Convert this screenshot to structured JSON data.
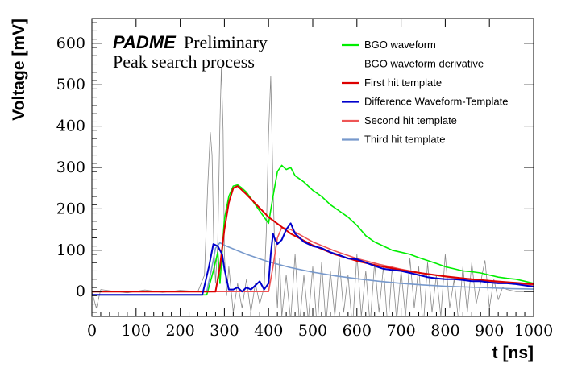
{
  "chart_data": {
    "type": "line",
    "title": "",
    "annotations": {
      "experiment": "PADME",
      "status": "Preliminary",
      "subtitle": "Peak search process"
    },
    "xlabel": "t [ns]",
    "ylabel": "Voltage [mV]",
    "xlim": [
      0,
      1000
    ],
    "ylim": [
      -60,
      660
    ],
    "xticks": [
      0,
      100,
      200,
      300,
      400,
      500,
      600,
      700,
      800,
      900,
      1000
    ],
    "yticks": [
      0,
      100,
      200,
      300,
      400,
      500,
      600
    ],
    "grid": false,
    "legend_position": "top-right",
    "series": [
      {
        "name": "BGO waveform",
        "color": "#00ee00",
        "x": [
          0,
          100,
          200,
          260,
          275,
          285,
          290,
          300,
          310,
          320,
          330,
          340,
          350,
          360,
          380,
          400,
          410,
          420,
          430,
          440,
          450,
          460,
          480,
          500,
          520,
          540,
          560,
          580,
          600,
          620,
          640,
          660,
          680,
          700,
          720,
          740,
          760,
          780,
          800,
          820,
          840,
          860,
          880,
          900,
          920,
          940,
          960,
          980,
          1000
        ],
        "y": [
          -8,
          -8,
          -8,
          -8,
          50,
          95,
          20,
          175,
          230,
          255,
          258,
          250,
          240,
          225,
          195,
          165,
          230,
          290,
          305,
          295,
          300,
          280,
          265,
          245,
          230,
          210,
          195,
          180,
          160,
          135,
          120,
          110,
          100,
          95,
          90,
          82,
          75,
          68,
          60,
          55,
          50,
          48,
          45,
          40,
          35,
          32,
          30,
          25,
          20
        ]
      },
      {
        "name": "BGO waveform derivative",
        "color": "#888888",
        "x": [
          0,
          10,
          20,
          40,
          80,
          120,
          160,
          200,
          240,
          255,
          262,
          268,
          272,
          276,
          280,
          285,
          290,
          293,
          297,
          300,
          305,
          310,
          320,
          330,
          340,
          350,
          360,
          370,
          380,
          390,
          395,
          400,
          405,
          410,
          415,
          420,
          425,
          430,
          440,
          450,
          460,
          470,
          480,
          490,
          500,
          510,
          520,
          530,
          540,
          550,
          560,
          570,
          580,
          590,
          600,
          610,
          620,
          630,
          640,
          650,
          660,
          670,
          680,
          690,
          700,
          710,
          720,
          730,
          740,
          750,
          760,
          770,
          780,
          790,
          800,
          810,
          820,
          830,
          840,
          850,
          860,
          870,
          880,
          885,
          890,
          895,
          900,
          910,
          920,
          930,
          940,
          960,
          980,
          1000
        ],
        "y": [
          0,
          -40,
          5,
          2,
          -3,
          4,
          -2,
          3,
          0,
          40,
          250,
          385,
          330,
          120,
          20,
          120,
          410,
          540,
          390,
          90,
          -10,
          60,
          -50,
          20,
          -40,
          30,
          -50,
          20,
          -30,
          10,
          150,
          380,
          520,
          260,
          60,
          -40,
          80,
          -60,
          40,
          -70,
          90,
          -80,
          40,
          -70,
          60,
          -90,
          70,
          -80,
          50,
          -60,
          80,
          -50,
          40,
          -90,
          90,
          -60,
          50,
          -80,
          70,
          -50,
          60,
          -90,
          60,
          -70,
          50,
          -60,
          80,
          -40,
          60,
          -90,
          70,
          -50,
          40,
          -60,
          90,
          -40,
          30,
          -70,
          60,
          -50,
          70,
          -30,
          20,
          50,
          75,
          20,
          -40,
          30,
          -20,
          10,
          5,
          0,
          0,
          0
        ]
      },
      {
        "name": "First hit template",
        "color": "#dd0000",
        "x": [
          0,
          280,
          290,
          300,
          310,
          320,
          330,
          350,
          400,
          450,
          500,
          550,
          600,
          650,
          700,
          750,
          800,
          850,
          900,
          950,
          1000
        ],
        "y": [
          0,
          0,
          60,
          150,
          215,
          250,
          255,
          235,
          180,
          140,
          112,
          90,
          74,
          62,
          52,
          44,
          37,
          31,
          26,
          22,
          18
        ]
      },
      {
        "name": "Difference Waveform-Template",
        "color": "#0000cc",
        "x": [
          0,
          50,
          100,
          150,
          200,
          250,
          265,
          275,
          285,
          290,
          295,
          300,
          310,
          320,
          330,
          340,
          350,
          360,
          370,
          380,
          390,
          400,
          405,
          410,
          415,
          420,
          430,
          440,
          450,
          460,
          470,
          480,
          490,
          500,
          520,
          540,
          560,
          580,
          600,
          620,
          640,
          660,
          680,
          700,
          720,
          740,
          760,
          780,
          800,
          820,
          840,
          860,
          880,
          900,
          920,
          940,
          960,
          980,
          1000
        ],
        "y": [
          -8,
          -8,
          -8,
          -8,
          -8,
          -8,
          60,
          115,
          110,
          100,
          90,
          55,
          5,
          5,
          10,
          0,
          10,
          5,
          15,
          25,
          5,
          20,
          90,
          140,
          125,
          115,
          125,
          150,
          165,
          140,
          130,
          120,
          115,
          110,
          105,
          95,
          88,
          80,
          78,
          70,
          62,
          55,
          52,
          50,
          45,
          40,
          35,
          32,
          30,
          30,
          28,
          25,
          25,
          22,
          20,
          20,
          18,
          15,
          12
        ]
      },
      {
        "name": "Second hit template",
        "color": "#ee5555",
        "x": [
          0,
          400,
          410,
          420,
          430,
          450,
          500,
          550,
          600,
          650,
          700,
          750,
          800,
          850,
          900,
          950,
          1000
        ],
        "y": [
          0,
          0,
          60,
          130,
          155,
          150,
          120,
          98,
          80,
          66,
          54,
          44,
          36,
          30,
          24,
          20,
          16
        ]
      },
      {
        "name": "Third hit template",
        "color": "#7799cc",
        "x": [
          0,
          260,
          270,
          280,
          290,
          300,
          350,
          400,
          450,
          500,
          550,
          600,
          650,
          700,
          750,
          800,
          850,
          900,
          950,
          1000
        ],
        "y": [
          0,
          0,
          50,
          105,
          118,
          112,
          90,
          72,
          58,
          47,
          38,
          31,
          25,
          20,
          16,
          13,
          11,
          9,
          7,
          6
        ]
      }
    ]
  }
}
